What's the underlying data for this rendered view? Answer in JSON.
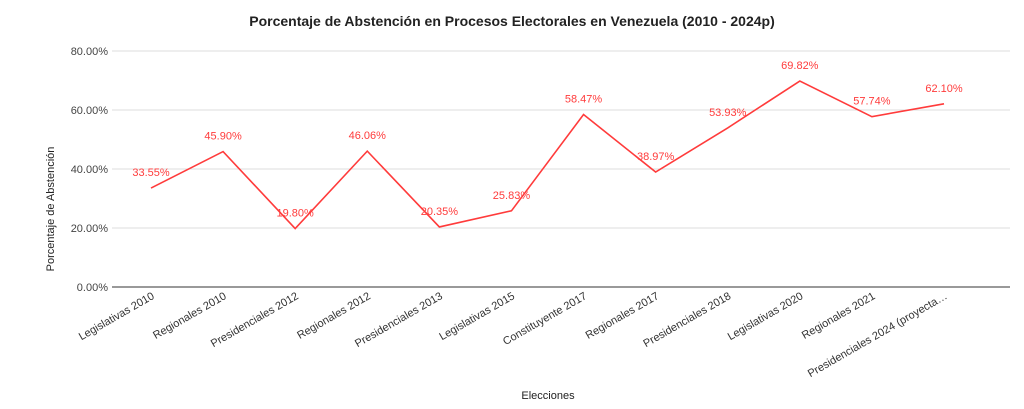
{
  "chart_data": {
    "type": "line",
    "title": "Porcentaje de Abstención en Procesos Electorales en Venezuela (2010 - 2024p)",
    "xlabel": "Elecciones",
    "ylabel": "Porcentaje de Abstención",
    "ylim": [
      0,
      80
    ],
    "yticks": [
      0,
      20,
      40,
      60,
      80
    ],
    "ytick_labels": [
      "0.00%",
      "20.00%",
      "40.00%",
      "60.00%",
      "80.00%"
    ],
    "grid": true,
    "categories": [
      "Legislativas 2010",
      "Regionales 2010",
      "Presidenciales 2012",
      "Regionales 2012",
      "Presidenciales 2013",
      "Legislativas 2015",
      "Constituyente 2017",
      "Regionales 2017",
      "Presidenciales 2018",
      "Legislativas 2020",
      "Regionales 2021",
      "Presidenciales 2024 (proyecta…"
    ],
    "series": [
      {
        "name": "Porcentaje de Abstención",
        "color": "#ff3b3b",
        "values": [
          33.55,
          45.9,
          19.8,
          46.06,
          20.35,
          25.83,
          58.47,
          38.97,
          53.93,
          69.82,
          57.74,
          62.1
        ],
        "data_labels": [
          "33.55%",
          "45.90%",
          "19.80%",
          "46.06%",
          "20.35%",
          "25.83%",
          "58.47%",
          "38.97%",
          "53.93%",
          "69.82%",
          "57.74%",
          "62.10%"
        ]
      }
    ]
  }
}
